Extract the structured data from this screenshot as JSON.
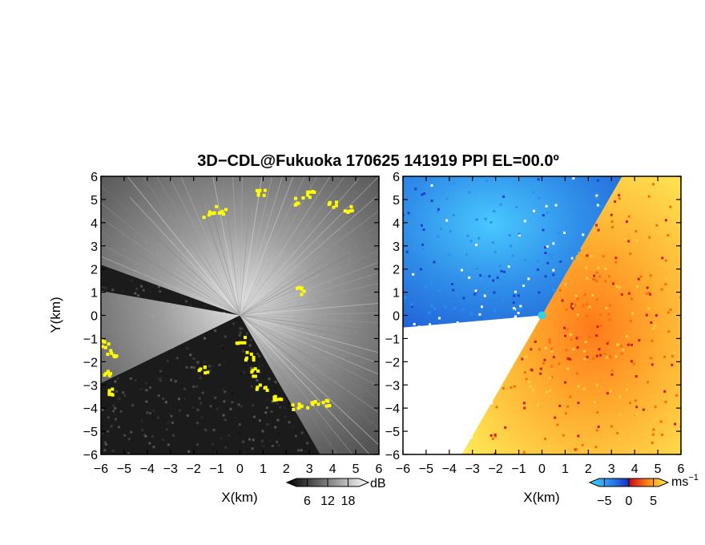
{
  "chart_data": {
    "title": "3D−CDL@Fukuoka 170625 141919 PPI EL=00.0º",
    "panels": [
      {
        "type": "heatmap",
        "quantity": "backscatter intensity",
        "xlabel": "X(km)",
        "ylabel": "Y(km)",
        "xlim": [
          -6,
          6
        ],
        "ylim": [
          -6,
          6
        ],
        "ticks": [
          "−6",
          "−5",
          "−4",
          "−3",
          "−2",
          "−1",
          "0",
          "1",
          "2",
          "3",
          "4",
          "5",
          "6"
        ],
        "colormap": "grayscale",
        "colorbar": {
          "unit": "dB",
          "ticks": [
            "6",
            "12",
            "18"
          ],
          "range": [
            0,
            24
          ]
        },
        "flag_color": "#ffff00"
      },
      {
        "type": "heatmap",
        "quantity": "radial velocity",
        "xlabel": "X(km)",
        "xlim": [
          -6,
          6
        ],
        "ylim": [
          -6,
          6
        ],
        "ticks": [
          "−6",
          "−5",
          "−4",
          "−3",
          "−2",
          "−1",
          "0",
          "1",
          "2",
          "3",
          "4",
          "5",
          "6"
        ],
        "colormap": "cyan-blue-red-yellow",
        "colorbar": {
          "unit": "ms",
          "unit_exp": "−1",
          "ticks": [
            "−5",
            "0",
            "5"
          ],
          "range": [
            -8,
            8
          ]
        },
        "wind_sectors": [
          {
            "sign": "negative",
            "from_deg": 100,
            "to_deg": 185
          },
          {
            "sign": "positive",
            "from_deg": -120,
            "to_deg": 60
          }
        ]
      }
    ]
  }
}
